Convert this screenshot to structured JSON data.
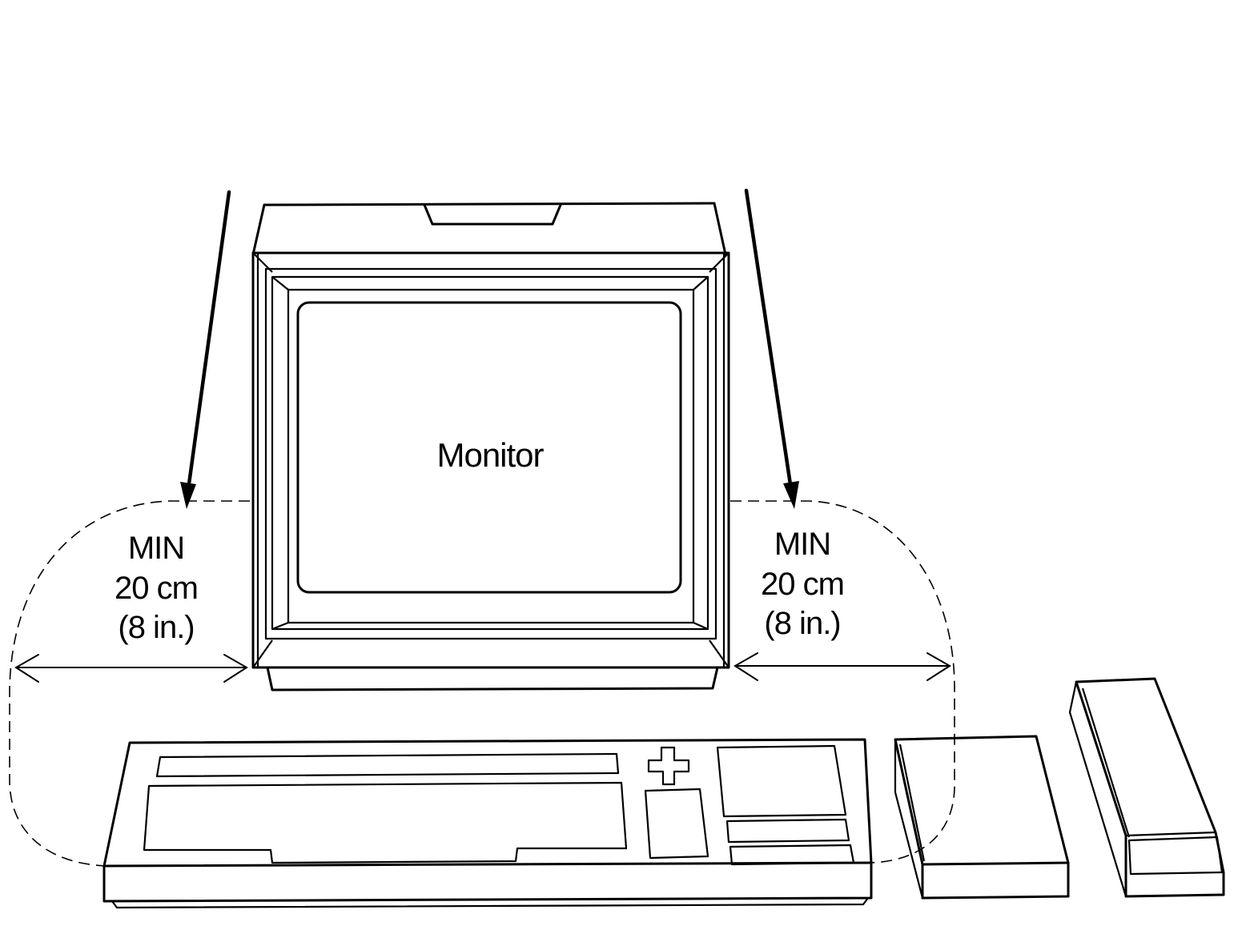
{
  "monitor": {
    "label": "Monitor"
  },
  "clearance_left": {
    "line1": "MIN",
    "line2": "20 cm",
    "line3": "(8 in.)"
  },
  "clearance_right": {
    "line1": "MIN",
    "line2": "20 cm",
    "line3": "(8 in.)"
  }
}
